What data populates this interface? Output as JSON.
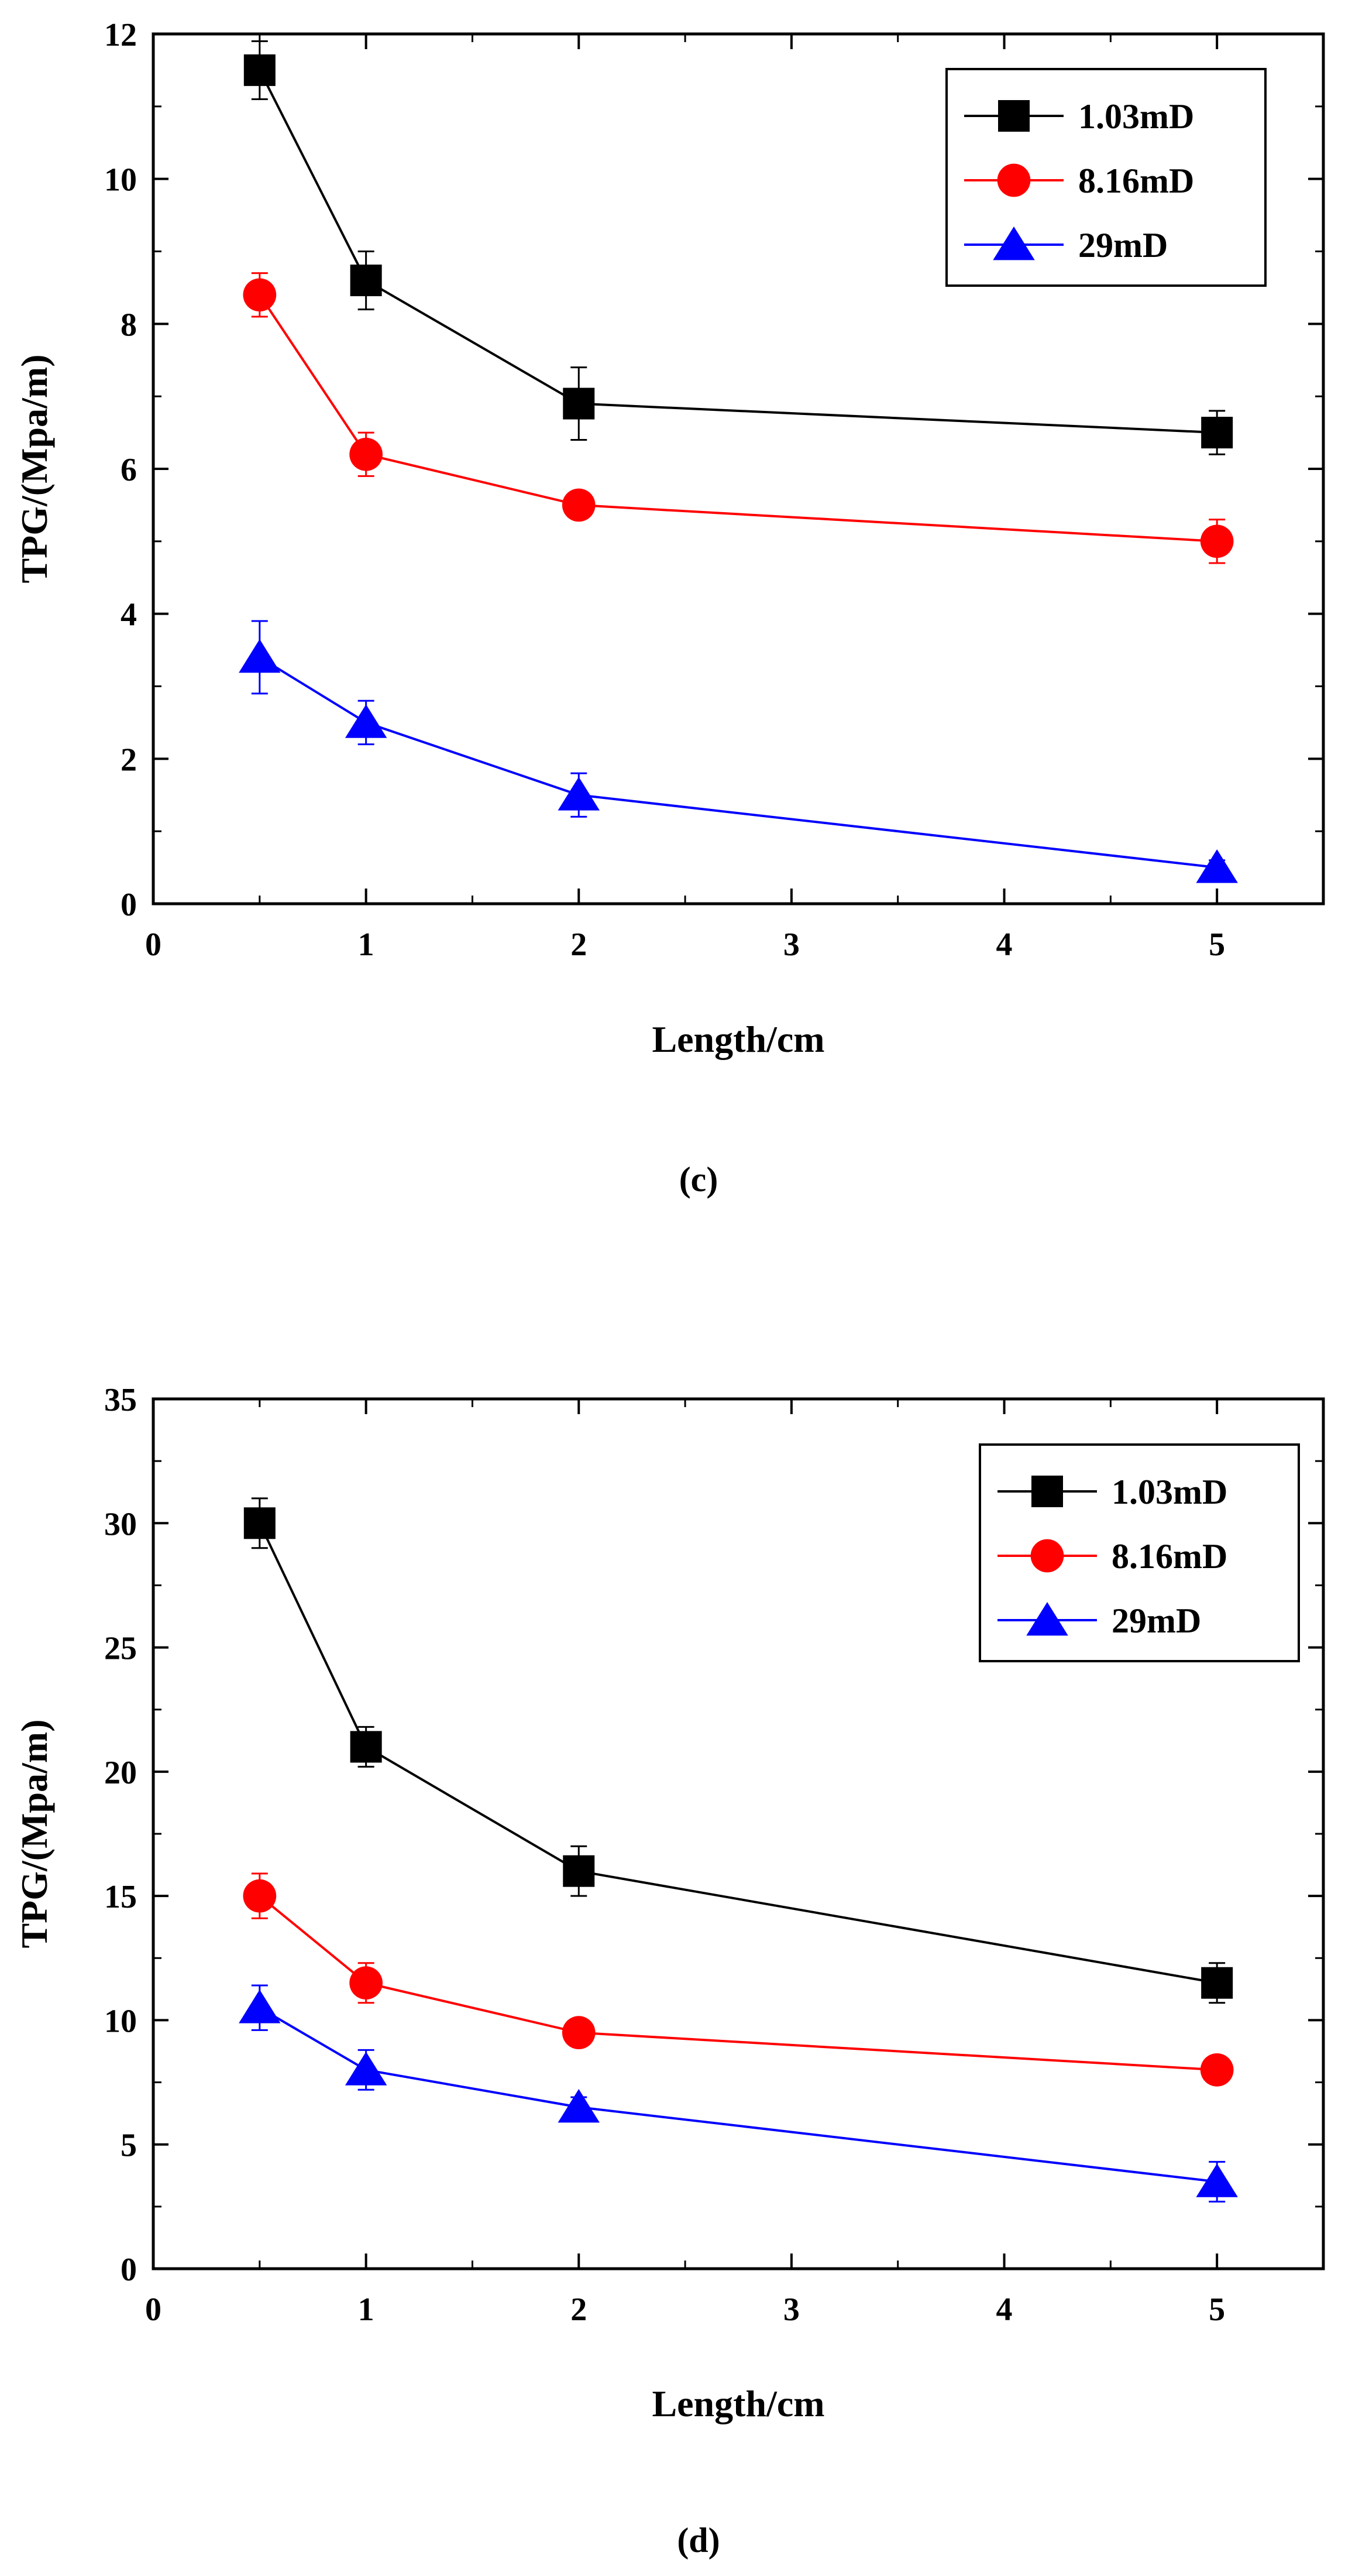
{
  "chart_data": [
    {
      "type": "line",
      "caption": "(c)",
      "xlabel": "Length/cm",
      "ylabel": "TPG/(Mpa/m)",
      "xlim": [
        0,
        5.5
      ],
      "ylim": [
        0,
        12
      ],
      "xticks": [
        0,
        1,
        2,
        3,
        4,
        5
      ],
      "yticks": [
        0,
        2,
        4,
        6,
        8,
        10,
        12
      ],
      "x": [
        0.5,
        1,
        2,
        5
      ],
      "legend_position": "top-right",
      "series": [
        {
          "name": "1.03mD",
          "color": "#000000",
          "marker": "square",
          "values": [
            11.5,
            8.6,
            6.9,
            6.5
          ],
          "errors": [
            0.4,
            0.4,
            0.5,
            0.3
          ]
        },
        {
          "name": "8.16mD",
          "color": "#ff0000",
          "marker": "circle",
          "values": [
            8.4,
            6.2,
            5.5,
            5.0
          ],
          "errors": [
            0.3,
            0.3,
            0.15,
            0.3
          ]
        },
        {
          "name": "29mD",
          "color": "#0000ff",
          "marker": "triangle",
          "values": [
            3.4,
            2.5,
            1.5,
            0.5
          ],
          "errors": [
            0.5,
            0.3,
            0.3,
            0.1
          ]
        }
      ]
    },
    {
      "type": "line",
      "caption": "(d)",
      "xlabel": "Length/cm",
      "ylabel": "TPG/(Mpa/m)",
      "xlim": [
        0,
        5.5
      ],
      "ylim": [
        0,
        35
      ],
      "xticks": [
        0,
        1,
        2,
        3,
        4,
        5
      ],
      "yticks": [
        0,
        5,
        10,
        15,
        20,
        25,
        30,
        35
      ],
      "x": [
        0.5,
        1,
        2,
        5
      ],
      "legend_position": "top-right",
      "series": [
        {
          "name": "1.03mD",
          "color": "#000000",
          "marker": "square",
          "values": [
            30,
            21,
            16,
            11.5
          ],
          "errors": [
            1.0,
            0.8,
            1.0,
            0.8
          ]
        },
        {
          "name": "8.16mD",
          "color": "#ff0000",
          "marker": "circle",
          "values": [
            15,
            11.5,
            9.5,
            8
          ],
          "errors": [
            0.9,
            0.8,
            0.4,
            0.4
          ]
        },
        {
          "name": "29mD",
          "color": "#0000ff",
          "marker": "triangle",
          "values": [
            10.5,
            8,
            6.5,
            3.5
          ],
          "errors": [
            0.9,
            0.8,
            0.4,
            0.8
          ]
        }
      ]
    }
  ]
}
